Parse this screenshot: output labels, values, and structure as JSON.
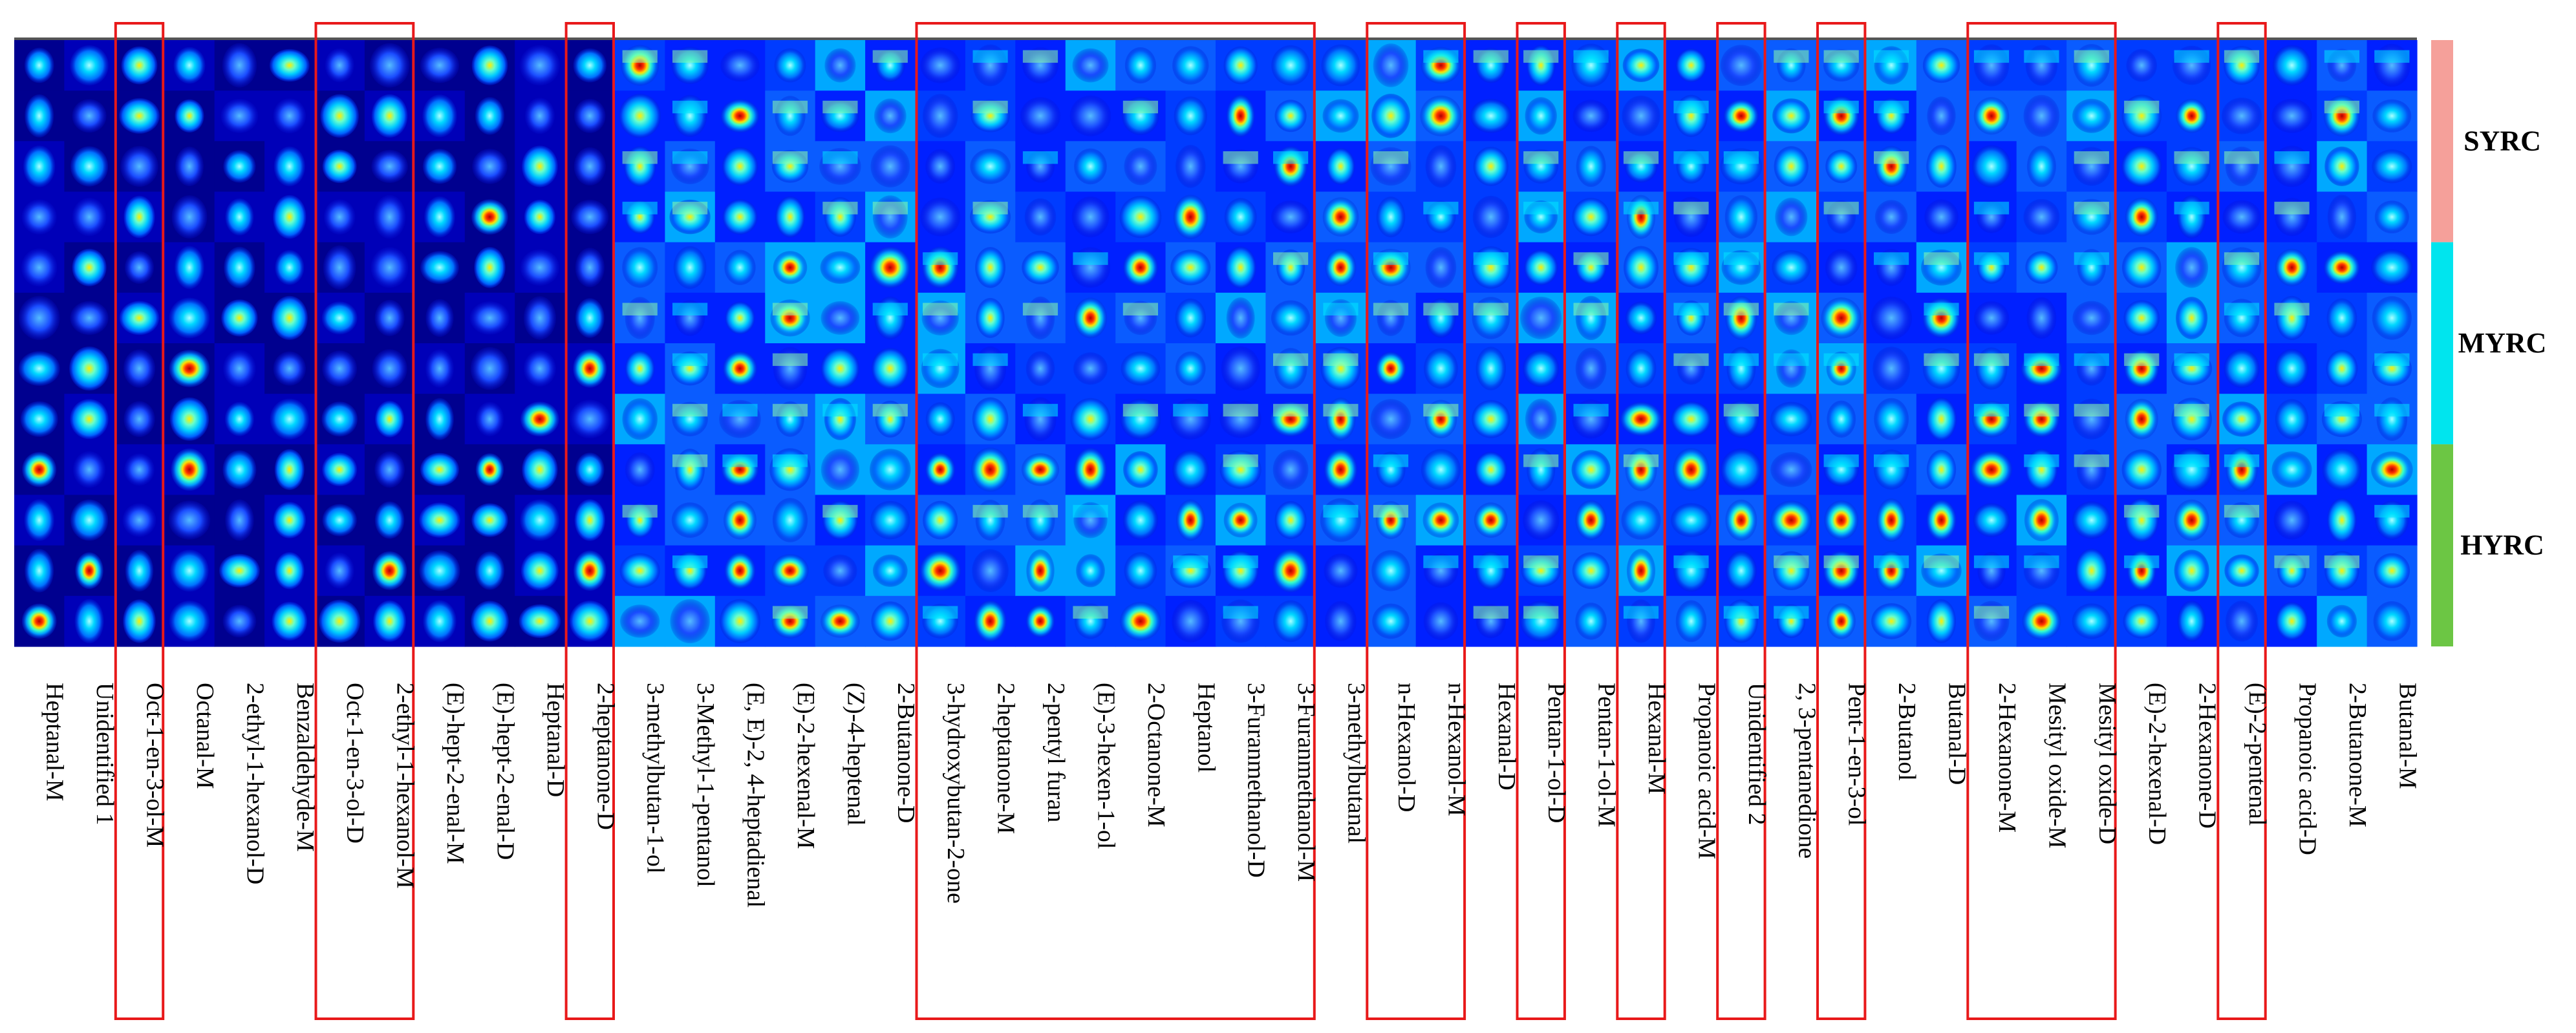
{
  "chart_data": {
    "type": "heatmap",
    "title": "",
    "rows": 12,
    "columns": [
      "Heptanal-M",
      "Unidentified 1",
      "Oct-1-en-3-ol-M",
      "Octanal-M",
      "2-ethyl-1-hexanol-D",
      "Benzaldehyde-M",
      "Oct-1-en-3-ol-D",
      "2-ethyl-1-hexanol-M",
      "(E)-hept-2-enal-M",
      "(E)-hept-2-enal-D",
      "Heptanal-D",
      "2-heptanone-D",
      "3-methylbutan-1-ol",
      "3-Methyl-1-pentanol",
      "(E, E)-2, 4-heptadienal",
      "(E)-2-hexenal-M",
      "(Z)-4-heptenal",
      "2-Butanone-D",
      "3-hydroxybutan-2-one",
      "2-heptanone-M",
      "2-pentyl furan",
      "(E)-3-hexen-1-ol",
      "2-Octanone-M",
      "Heptanol",
      "3-Furanmethanol-D",
      "3-Furanmethanol-M",
      "3-methylbutanal",
      "n-Hexanol-D",
      "n-Hexanol-M",
      "Hexanal-D",
      "Pentan-1-ol-D",
      "Pentan-1-ol-M",
      "Hexanal-M",
      "Propanoic acid-M",
      "Unidentified 2",
      "2, 3-pentanedione",
      "Pent-1-en-3-ol",
      "2-Butanol",
      "Butanal-D",
      "2-Hexanone-M",
      "Mesityl oxide-M",
      "Mesityl oxide-D",
      "(E)-2-hexenal-D",
      "2-Hexanone-D",
      "(E)-2-pentenal",
      "Propanoic acid-D",
      "2-Butanone-M",
      "Butanal-M"
    ],
    "highlighted_columns": [
      "Oct-1-en-3-ol-M",
      "Oct-1-en-3-ol-D, 2-ethyl-1-hexanol-M",
      "2-heptanone-D",
      "3-hydroxybutan-2-one … 3-Furanmethanol-M",
      "n-Hexanol-D, n-Hexanol-M",
      "Pentan-1-ol-D",
      "Hexanal-M",
      "Unidentified 2",
      "Pent-1-en-3-ol",
      "2-Hexanone-M, Mesityl oxide-M, Mesityl oxide-D",
      "(E)-2-pentenal"
    ],
    "groups": [
      {
        "name": "SYRC",
        "color": "#f5a09a",
        "rows": [
          1,
          4
        ]
      },
      {
        "name": "MYRC",
        "color": "#00e5ee",
        "rows": [
          5,
          8
        ]
      },
      {
        "name": "HYRC",
        "color": "#6cc644",
        "rows": [
          9,
          12
        ]
      }
    ],
    "colormap": "jet",
    "highlight_color": "#e8191a"
  }
}
